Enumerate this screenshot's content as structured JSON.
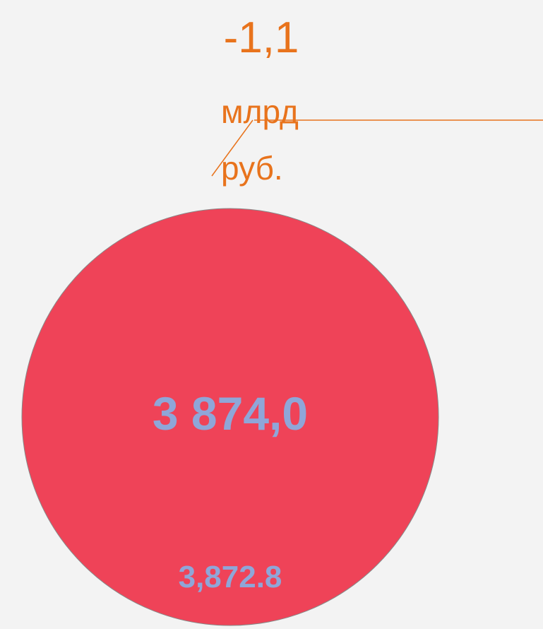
{
  "annotation": {
    "value": "-1,1",
    "unit": "млрд руб."
  },
  "bubble": {
    "label": "3 874,0",
    "sublabel": "3,872.8"
  }
}
